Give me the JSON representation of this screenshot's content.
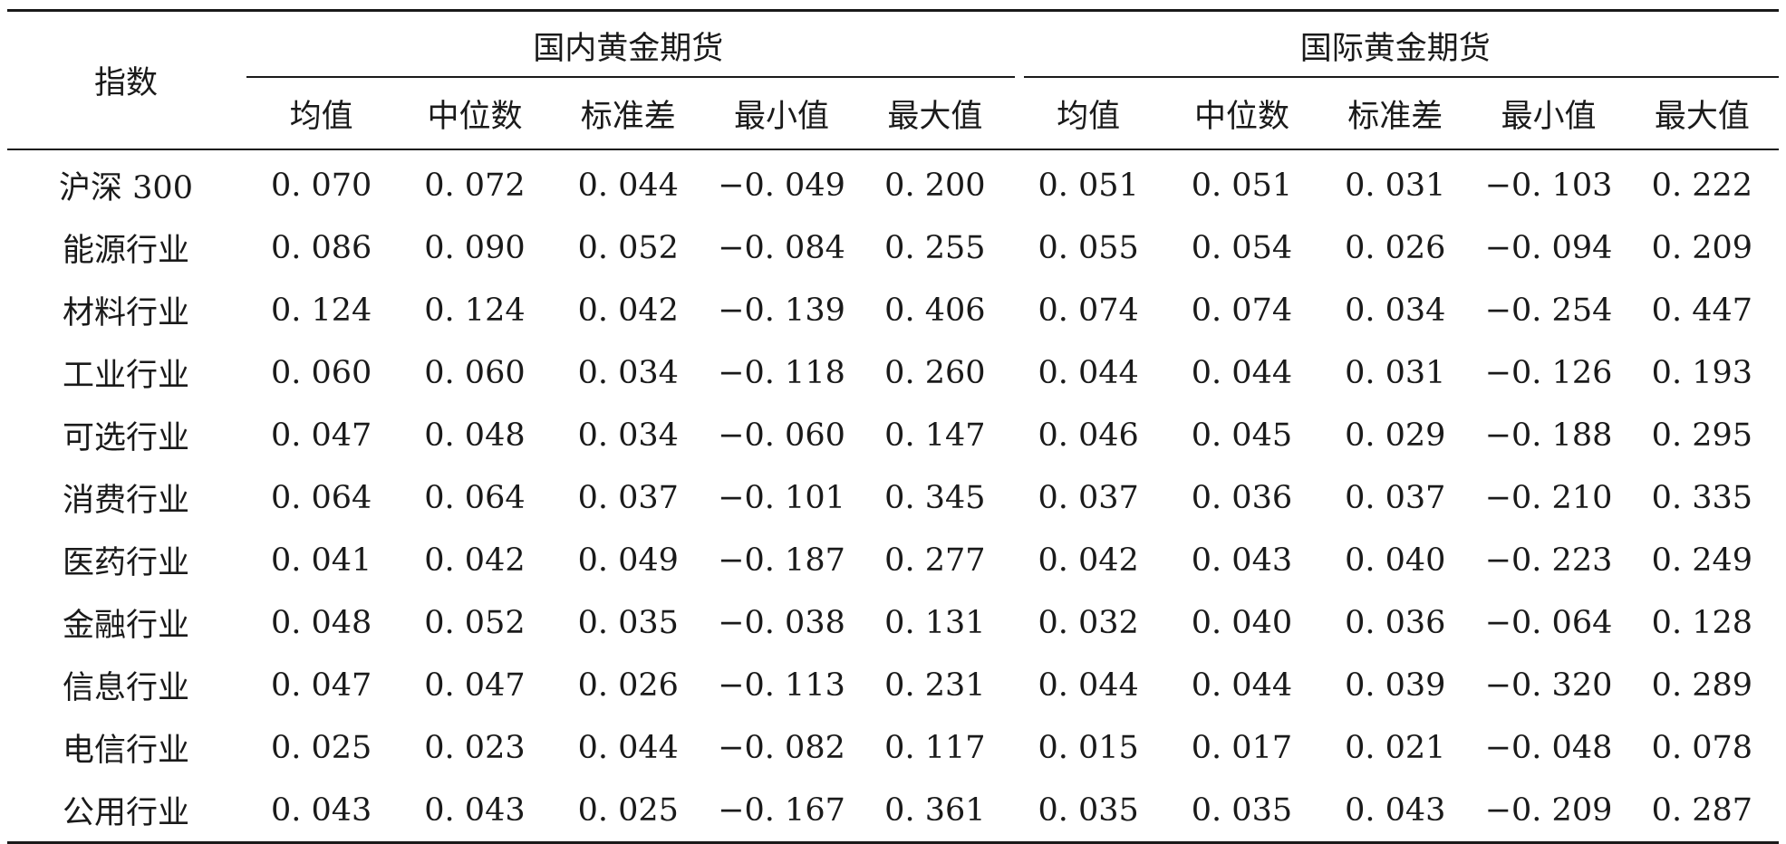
{
  "table": {
    "index_header": "指数",
    "groups": [
      {
        "label": "国内黄金期货",
        "span": 5
      },
      {
        "label": "国际黄金期货",
        "span": 5
      }
    ],
    "stat_headers": [
      "均值",
      "中位数",
      "标准差",
      "最小值",
      "最大值",
      "均值",
      "中位数",
      "标准差",
      "最小值",
      "最大值"
    ],
    "rows": [
      {
        "name": "沪深 300",
        "values": [
          "0. 070",
          "0. 072",
          "0. 044",
          "−0. 049",
          "0. 200",
          "0. 051",
          "0. 051",
          "0. 031",
          "−0. 103",
          "0. 222"
        ]
      },
      {
        "name": "能源行业",
        "values": [
          "0. 086",
          "0. 090",
          "0. 052",
          "−0. 084",
          "0. 255",
          "0. 055",
          "0. 054",
          "0. 026",
          "−0. 094",
          "0. 209"
        ]
      },
      {
        "name": "材料行业",
        "values": [
          "0. 124",
          "0. 124",
          "0. 042",
          "−0. 139",
          "0. 406",
          "0. 074",
          "0. 074",
          "0. 034",
          "−0. 254",
          "0. 447"
        ]
      },
      {
        "name": "工业行业",
        "values": [
          "0. 060",
          "0. 060",
          "0. 034",
          "−0. 118",
          "0. 260",
          "0. 044",
          "0. 044",
          "0. 031",
          "−0. 126",
          "0. 193"
        ]
      },
      {
        "name": "可选行业",
        "values": [
          "0. 047",
          "0. 048",
          "0. 034",
          "−0. 060",
          "0. 147",
          "0. 046",
          "0. 045",
          "0. 029",
          "−0. 188",
          "0. 295"
        ]
      },
      {
        "name": "消费行业",
        "values": [
          "0. 064",
          "0. 064",
          "0. 037",
          "−0. 101",
          "0. 345",
          "0. 037",
          "0. 036",
          "0. 037",
          "−0. 210",
          "0. 335"
        ]
      },
      {
        "name": "医药行业",
        "values": [
          "0. 041",
          "0. 042",
          "0. 049",
          "−0. 187",
          "0. 277",
          "0. 042",
          "0. 043",
          "0. 040",
          "−0. 223",
          "0. 249"
        ]
      },
      {
        "name": "金融行业",
        "values": [
          "0. 048",
          "0. 052",
          "0. 035",
          "−0. 038",
          "0. 131",
          "0. 032",
          "0. 040",
          "0. 036",
          "−0. 064",
          "0. 128"
        ]
      },
      {
        "name": "信息行业",
        "values": [
          "0. 047",
          "0. 047",
          "0. 026",
          "−0. 113",
          "0. 231",
          "0. 044",
          "0. 044",
          "0. 039",
          "−0. 320",
          "0. 289"
        ]
      },
      {
        "name": "电信行业",
        "values": [
          "0. 025",
          "0. 023",
          "0. 044",
          "−0. 082",
          "0. 117",
          "0. 015",
          "0. 017",
          "0. 021",
          "−0. 048",
          "0. 078"
        ]
      },
      {
        "name": "公用行业",
        "values": [
          "0. 043",
          "0. 043",
          "0. 025",
          "−0. 167",
          "0. 361",
          "0. 035",
          "0. 035",
          "0. 043",
          "−0. 209",
          "0. 287"
        ]
      }
    ]
  }
}
